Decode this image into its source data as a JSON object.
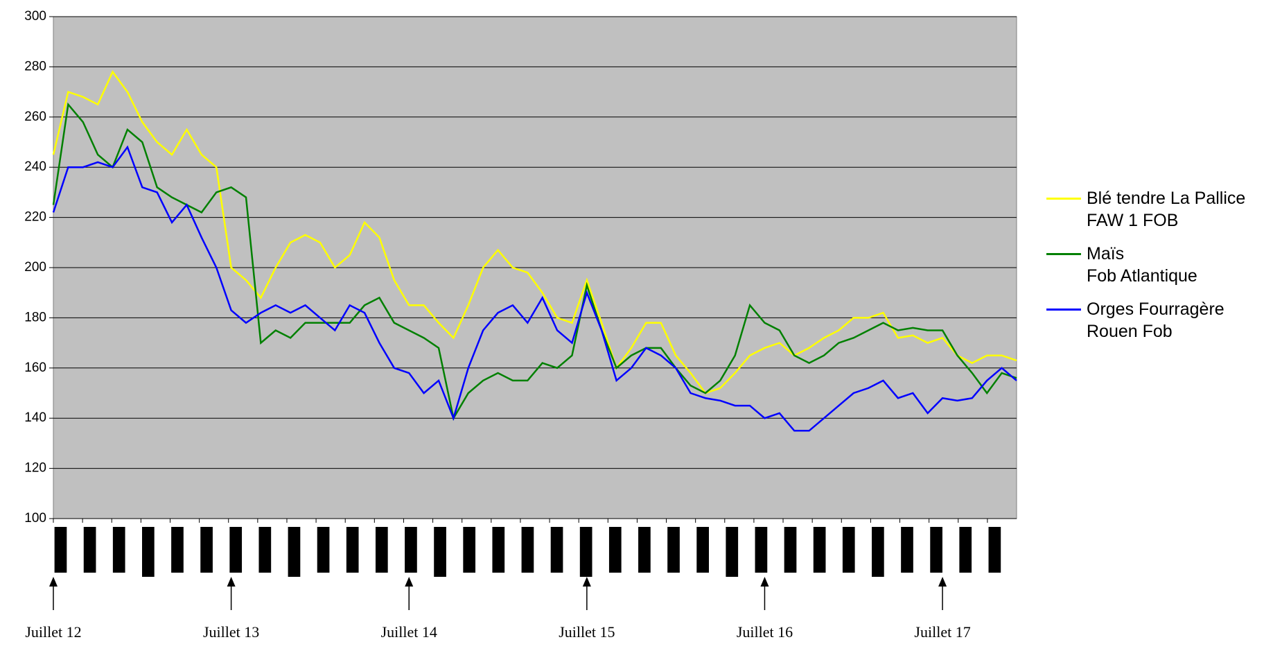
{
  "chart_data": {
    "type": "line",
    "categories": [
      "Juillet 12",
      null,
      null,
      null,
      null,
      null,
      null,
      null,
      null,
      null,
      null,
      null,
      "Juillet 13",
      null,
      null,
      null,
      null,
      null,
      null,
      null,
      null,
      null,
      null,
      null,
      "Juillet 14",
      null,
      null,
      null,
      null,
      null,
      null,
      null,
      null,
      null,
      null,
      null,
      "Juillet 15",
      null,
      null,
      null,
      null,
      null,
      null,
      null,
      null,
      null,
      null,
      null,
      "Juillet 16",
      null,
      null,
      null,
      null,
      null,
      null,
      null,
      null,
      null,
      null,
      null,
      "Juillet 17",
      null,
      null,
      null,
      null,
      null
    ],
    "series": [
      {
        "name": "Blé tendre  La Pallice\nFAW 1 FOB",
        "color": "#ffff00",
        "values": [
          245,
          270,
          268,
          265,
          278,
          270,
          258,
          250,
          245,
          255,
          245,
          240,
          200,
          195,
          188,
          200,
          210,
          213,
          210,
          200,
          205,
          218,
          212,
          195,
          185,
          185,
          178,
          172,
          185,
          200,
          207,
          200,
          198,
          190,
          180,
          178,
          195,
          178,
          160,
          168,
          178,
          178,
          165,
          158,
          150,
          152,
          158,
          165,
          168,
          170,
          165,
          168,
          172,
          175,
          180,
          180,
          182,
          172,
          173,
          170,
          172,
          165,
          162,
          165,
          165,
          163
        ]
      },
      {
        "name": "Maïs\nFob Atlantique",
        "color": "#008000",
        "values": [
          225,
          265,
          258,
          245,
          240,
          255,
          250,
          232,
          228,
          225,
          222,
          230,
          232,
          228,
          170,
          175,
          172,
          178,
          178,
          178,
          178,
          185,
          188,
          178,
          175,
          172,
          168,
          140,
          150,
          155,
          158,
          155,
          155,
          162,
          160,
          165,
          193,
          175,
          160,
          165,
          168,
          168,
          160,
          153,
          150,
          155,
          165,
          185,
          178,
          175,
          165,
          162,
          165,
          170,
          172,
          175,
          178,
          175,
          176,
          175,
          175,
          165,
          158,
          150,
          158,
          156
        ]
      },
      {
        "name": "Orges Fourragère\nRouen Fob",
        "color": "#0000ff",
        "values": [
          222,
          240,
          240,
          242,
          240,
          248,
          232,
          230,
          218,
          225,
          212,
          200,
          183,
          178,
          182,
          185,
          182,
          185,
          180,
          175,
          185,
          182,
          170,
          160,
          158,
          150,
          155,
          140,
          160,
          175,
          182,
          185,
          178,
          188,
          175,
          170,
          190,
          175,
          155,
          160,
          168,
          165,
          160,
          150,
          148,
          147,
          145,
          145,
          140,
          142,
          135,
          135,
          140,
          145,
          150,
          152,
          155,
          148,
          150,
          142,
          148,
          147,
          148,
          155,
          160,
          155
        ]
      }
    ],
    "ylim": [
      100,
      300
    ],
    "yticks": [
      100,
      120,
      140,
      160,
      180,
      200,
      220,
      240,
      260,
      280,
      300
    ],
    "grid": true
  }
}
